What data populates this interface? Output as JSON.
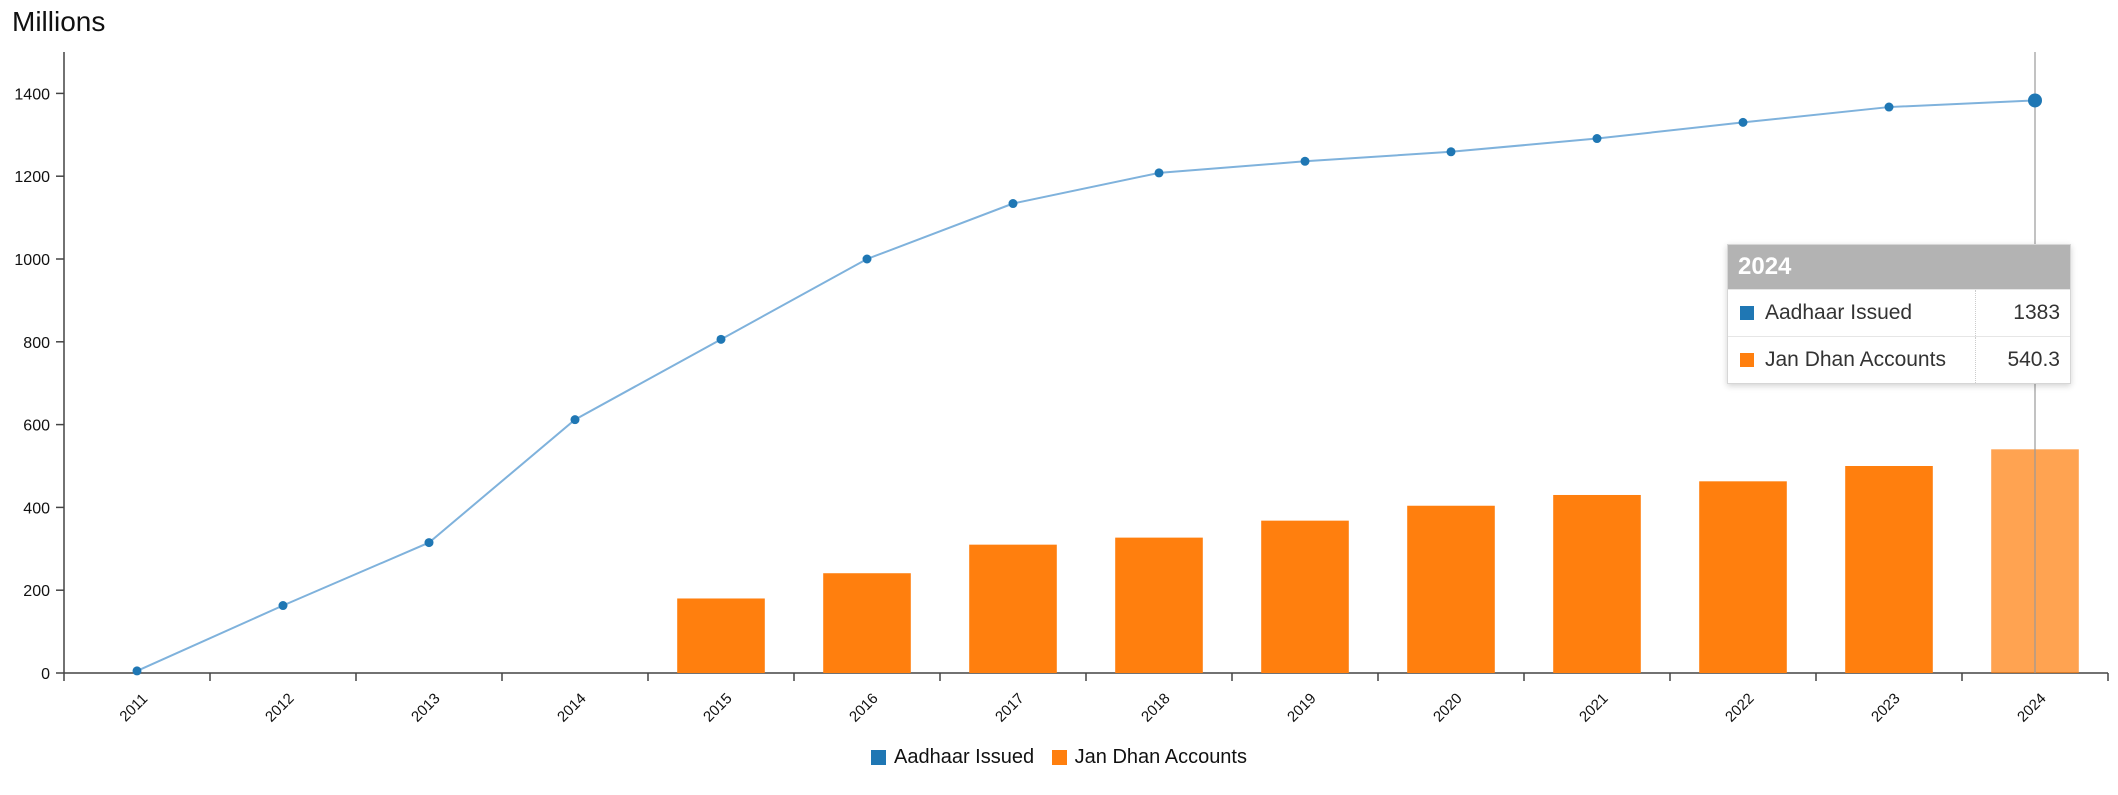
{
  "chart_data": {
    "type": "bar",
    "title": "",
    "unit_label": "Millions",
    "xlabel": "",
    "ylabel": "",
    "ylim": [
      0,
      1500
    ],
    "yticks": [
      0,
      200,
      400,
      600,
      800,
      1000,
      1200,
      1400
    ],
    "categories": [
      "2011",
      "2012",
      "2013",
      "2014",
      "2015",
      "2016",
      "2017",
      "2018",
      "2019",
      "2020",
      "2021",
      "2022",
      "2023",
      "2024"
    ],
    "series": [
      {
        "name": "Aadhaar Issued",
        "type": "line",
        "color": "#1f77b4",
        "values": [
          5,
          163,
          315,
          612,
          806,
          1000,
          1134,
          1208,
          1236,
          1259,
          1291,
          1330,
          1367,
          1383
        ]
      },
      {
        "name": "Jan Dhan Accounts",
        "type": "bar",
        "color": "#ff7f0e",
        "values": [
          null,
          null,
          null,
          null,
          180,
          241,
          310,
          327,
          368,
          404,
          430,
          463,
          500,
          540.3
        ]
      }
    ],
    "legend_position": "bottom-center",
    "grid": false,
    "highlight": {
      "category": "2024",
      "tooltip_title": "2024",
      "rows": [
        {
          "name": "Aadhaar Issued",
          "value": "1383",
          "color": "#1f77b4"
        },
        {
          "name": "Jan Dhan Accounts",
          "value": "540.3",
          "color": "#ff7f0e"
        }
      ]
    }
  }
}
